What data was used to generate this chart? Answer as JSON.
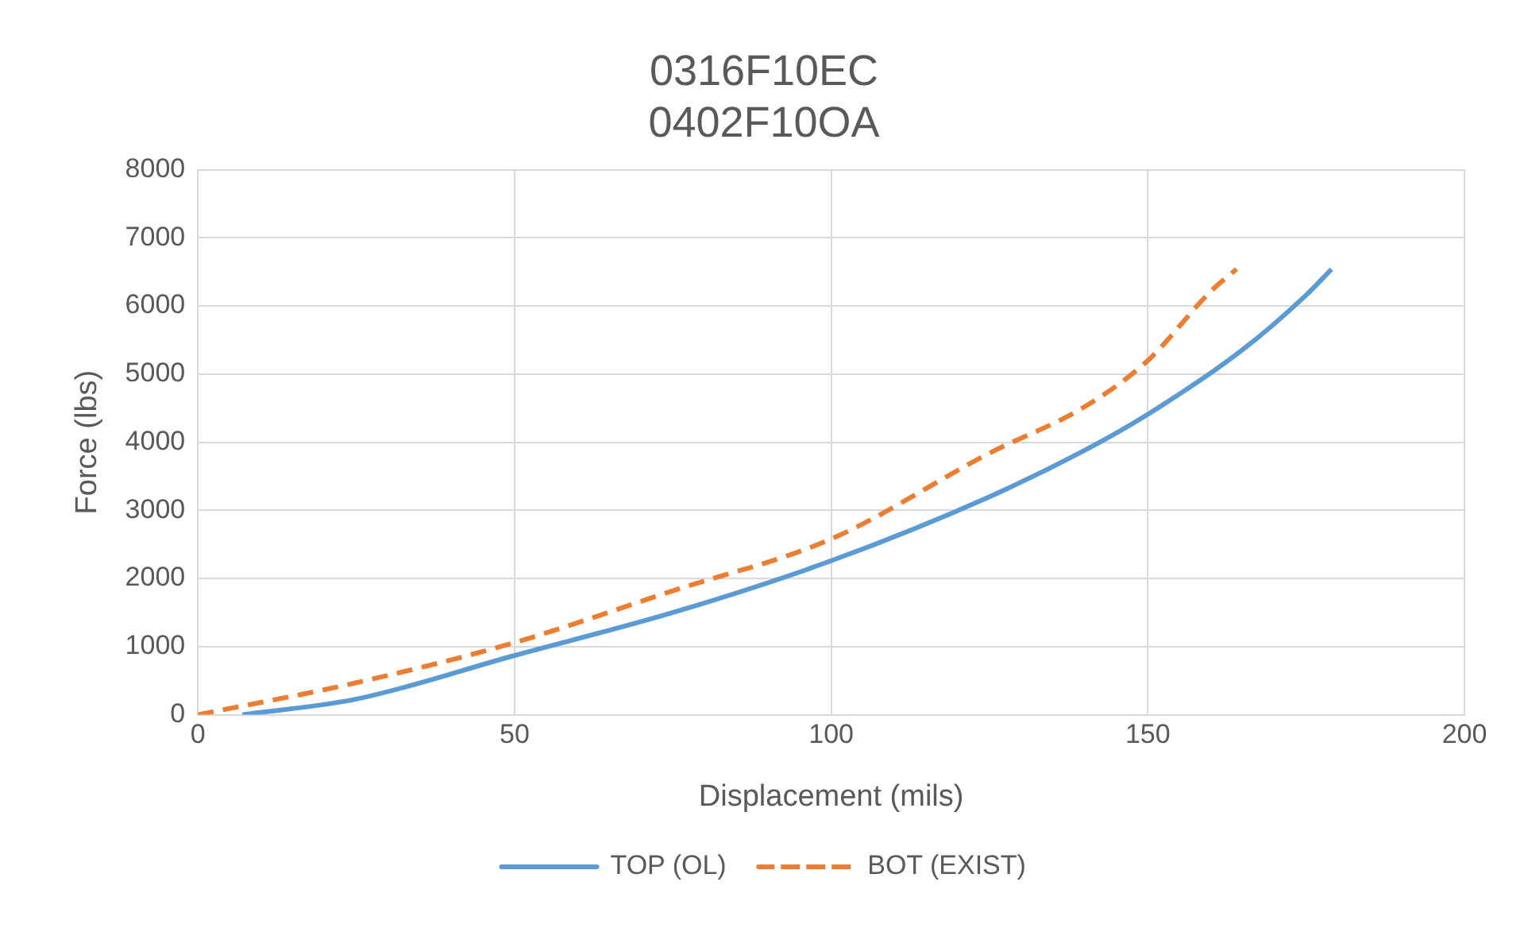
{
  "chart_data": {
    "type": "line",
    "title": "0316F10EC\n0402F10OA",
    "xlabel": "Displacement (mils)",
    "ylabel": "Force (lbs)",
    "xlim": [
      0,
      200
    ],
    "xticks": [
      0,
      50,
      100,
      150,
      200
    ],
    "ylim": [
      0,
      8000
    ],
    "yticks": [
      0,
      1000,
      2000,
      3000,
      4000,
      5000,
      6000,
      7000,
      8000
    ],
    "grid": true,
    "legend": "bottom",
    "marker": "none",
    "series": [
      {
        "name": "TOP (OL)",
        "color": "#5b9bd5",
        "line_style": "solid",
        "x": [
          7,
          25,
          50,
          75,
          100,
          125,
          140,
          150,
          165,
          175,
          179
        ],
        "values": [
          0,
          230,
          870,
          1500,
          2260,
          3200,
          3880,
          4410,
          5360,
          6160,
          6540
        ]
      },
      {
        "name": "BOT (EXIST)",
        "color": "#ed7d31",
        "line_style": "dashed",
        "x": [
          0,
          25,
          50,
          75,
          100,
          125,
          140,
          150,
          160,
          164
        ],
        "values": [
          0,
          470,
          1060,
          1820,
          2580,
          3840,
          4520,
          5200,
          6220,
          6540
        ]
      }
    ]
  }
}
